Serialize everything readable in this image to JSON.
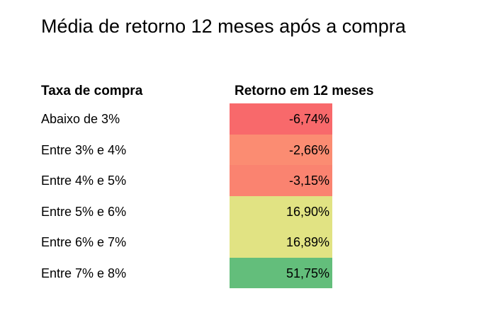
{
  "title": "Média de retorno 12 meses após a compra",
  "chart_data": {
    "type": "table",
    "title": "Média de retorno 12 meses após a compra",
    "columns": [
      "Taxa de compra",
      "Retorno em 12 meses"
    ],
    "rows": [
      {
        "label": "Abaixo de 3%",
        "value_text": "-6,74%",
        "value": -6.74,
        "color": "#f8696b"
      },
      {
        "label": "Entre 3% e 4%",
        "value_text": "-2,66%",
        "value": -2.66,
        "color": "#fb8c72"
      },
      {
        "label": "Entre 4% e 5%",
        "value_text": "-3,15%",
        "value": -3.15,
        "color": "#fa8370"
      },
      {
        "label": "Entre 5% e 6%",
        "value_text": "16,90%",
        "value": 16.9,
        "color": "#e1e383"
      },
      {
        "label": "Entre 6% e 7%",
        "value_text": "16,89%",
        "value": 16.89,
        "color": "#e1e383"
      },
      {
        "label": "Entre 7% e 8%",
        "value_text": "51,75%",
        "value": 51.75,
        "color": "#63be7b"
      }
    ]
  }
}
